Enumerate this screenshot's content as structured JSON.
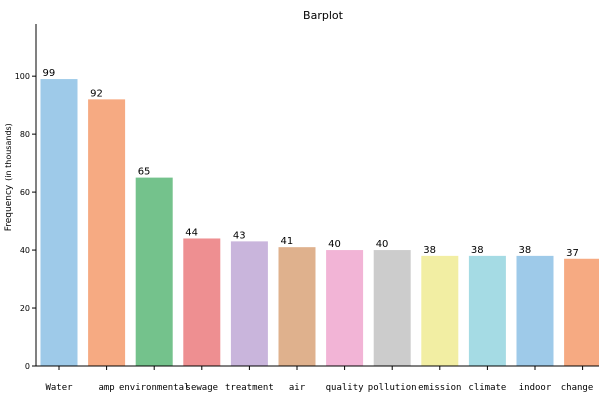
{
  "chart_data": {
    "type": "bar",
    "title": "Barplot",
    "xlabel": "",
    "ylabel": "Frequency",
    "ylabel_unit": "(in thousands)",
    "ylim": [
      0,
      118
    ],
    "yticks": [
      0,
      20,
      40,
      60,
      80,
      100
    ],
    "categories": [
      "Water",
      "amp",
      "environmental",
      "sewage",
      "treatment",
      "air",
      "quality",
      "pollution",
      "emission",
      "climate",
      "indoor",
      "change"
    ],
    "values": [
      99,
      92,
      65,
      44,
      43,
      41,
      40,
      40,
      38,
      38,
      38,
      37
    ],
    "value_labels": [
      "99",
      "92",
      "65",
      "44",
      "43",
      "41",
      "40",
      "40",
      "38",
      "38",
      "38",
      "37"
    ],
    "colors": [
      "#9ecae9",
      "#f6aa82",
      "#74c28c",
      "#ee8f91",
      "#c9b5dc",
      "#dfb18d",
      "#f2b4d6",
      "#cccccc",
      "#f2eea3",
      "#a5dbe4",
      "#9ecae9",
      "#f6aa82"
    ],
    "grid": false,
    "legend": "none"
  }
}
